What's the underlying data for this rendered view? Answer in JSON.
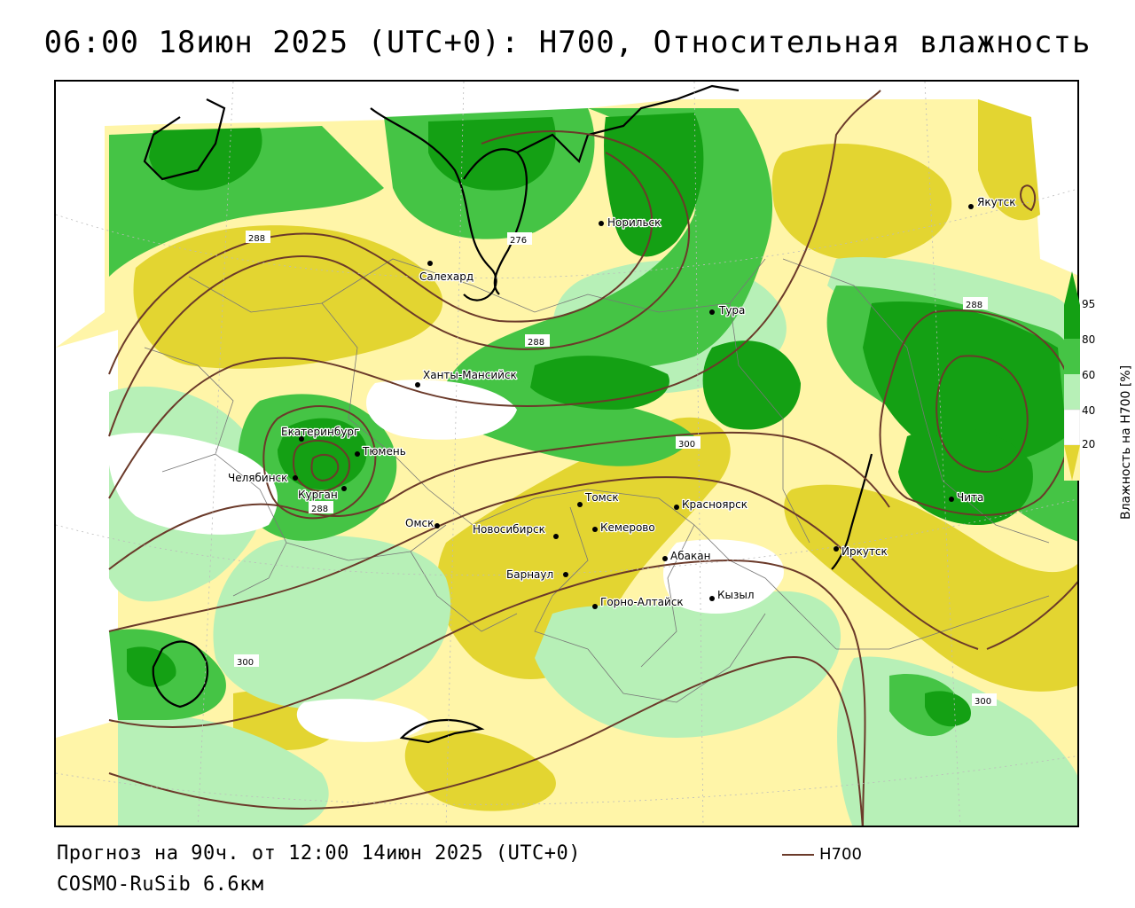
{
  "title": "06:00 18июн 2025 (UTC+0): H700, Относительная влажность",
  "footer": {
    "forecast": "Прогноз на 90ч. от 12:00 14июн 2025 (UTC+0)",
    "model": "COSMO-RuSib 6.6км"
  },
  "legend": {
    "label": "H700",
    "color": "#6b3a2a"
  },
  "colorbar": {
    "label": "Влажность на H700 [%]",
    "ticks": [
      "95",
      "80",
      "60",
      "40",
      "20"
    ],
    "colors": {
      "very_moist": "#14a014",
      "moist": "#45c445",
      "humid": "#b7f0b7",
      "medium": "#ffffff",
      "dry": "#fff5a8",
      "very_dry": "#e3d531"
    }
  },
  "contour_labels": [
    "288",
    "276",
    "288",
    "288",
    "288",
    "300",
    "300",
    "300"
  ],
  "cities": [
    {
      "name": "Якутск"
    },
    {
      "name": "Норильск"
    },
    {
      "name": "Салехард"
    },
    {
      "name": "Тура"
    },
    {
      "name": "Ханты-Мансийск"
    },
    {
      "name": "Екатеринбург"
    },
    {
      "name": "Тюмень"
    },
    {
      "name": "Челябинск"
    },
    {
      "name": "Курган"
    },
    {
      "name": "Омск"
    },
    {
      "name": "Томск"
    },
    {
      "name": "Красноярск"
    },
    {
      "name": "Кемерово"
    },
    {
      "name": "Новосибирск"
    },
    {
      "name": "Абакан"
    },
    {
      "name": "Барнаул"
    },
    {
      "name": "Кызыл"
    },
    {
      "name": "Горно-Алтайск"
    },
    {
      "name": "Иркутск"
    },
    {
      "name": "Чита"
    }
  ]
}
